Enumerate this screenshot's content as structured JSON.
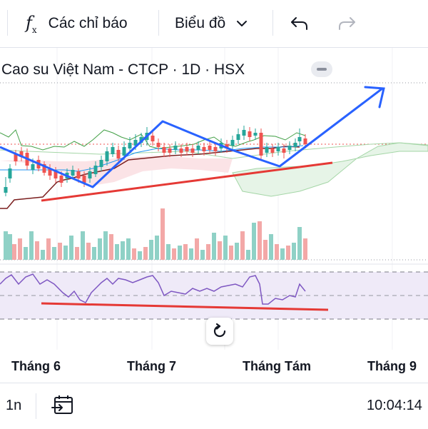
{
  "toolbar": {
    "indicators_icon": "fx-icon",
    "indicators_label": "Các chỉ báo",
    "chart_type_label": "Biểu đồ",
    "undo_icon": "undo-icon",
    "redo_icon": "redo-icon"
  },
  "chart": {
    "symbol_title": "Cao su Việt Nam - CTCP · 1D · HSX",
    "months": [
      "Tháng 6",
      "Tháng 7",
      "Tháng Tám",
      "Tháng 9"
    ],
    "colors": {
      "up": "#26a69a",
      "down": "#ef5350",
      "drawing_blue": "#2962ff",
      "drawing_red": "#e53935",
      "rsi_line": "#7e57c2",
      "rsi_band": "#efeaf8",
      "cloud_green": "#e6f4e7",
      "cloud_red": "#fbe3e6"
    }
  },
  "bottombar": {
    "interval_label": "1n",
    "date_range_icon": "calendar-goto-icon",
    "clock": "10:04:14"
  }
}
